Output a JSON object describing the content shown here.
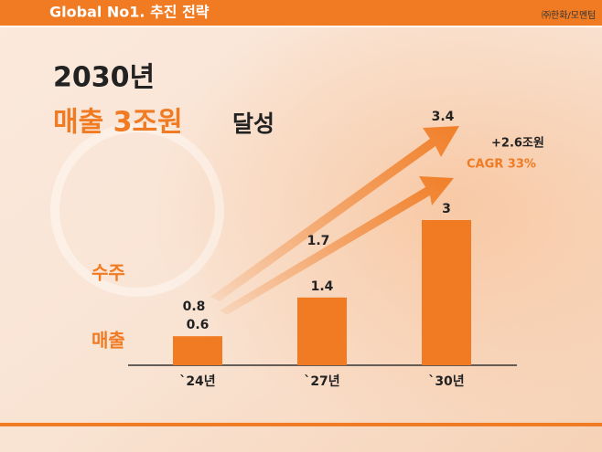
{
  "chart_data": {
    "type": "bar",
    "header": "Global No1. 추진 전략",
    "logo": "㈜한화/모멘텀",
    "title_line1": "2030년",
    "title_highlight": "매출 3조원",
    "title_suffix": "달성",
    "annotation_growth": "+2.6조원",
    "annotation_cagr": "CAGR 33%",
    "categories": [
      "`24년",
      "`27년",
      "`30년"
    ],
    "series": [
      {
        "name": "수주",
        "color": "#f07b22",
        "values": [
          0.8,
          1.7,
          3.4
        ]
      },
      {
        "name": "매출",
        "color": "#f07b22",
        "values": [
          0.6,
          1.4,
          3.0
        ]
      }
    ]
  }
}
